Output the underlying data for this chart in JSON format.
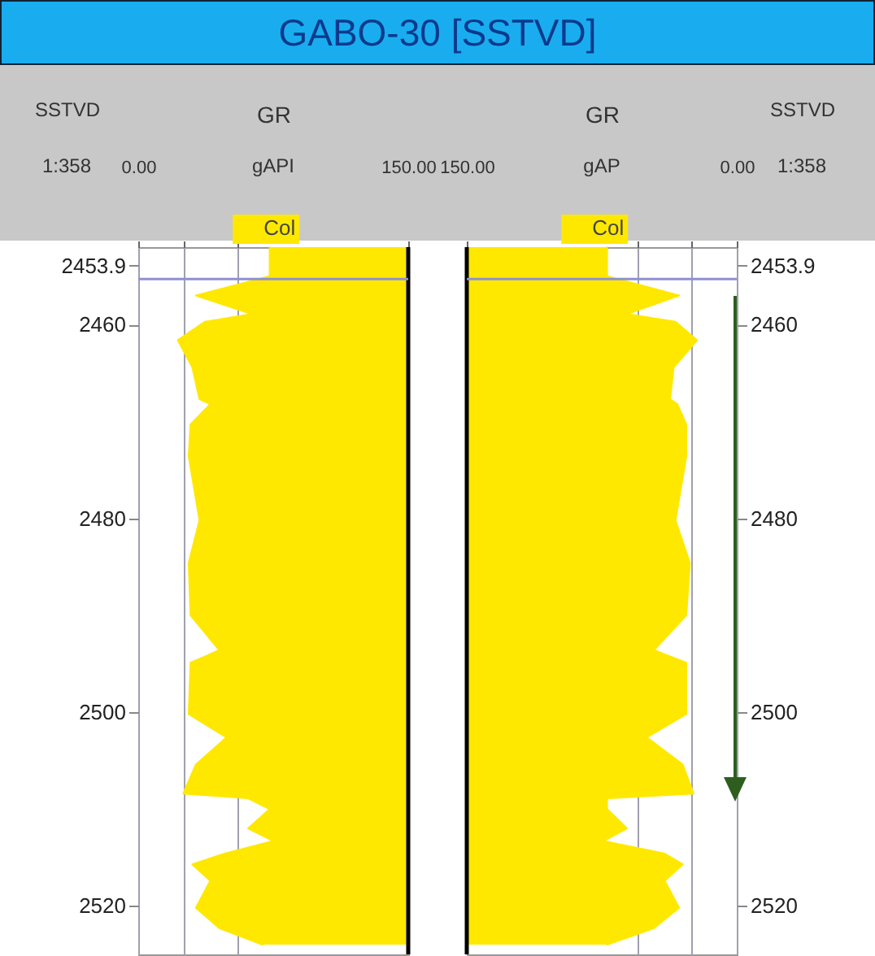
{
  "chart_data": [
    {
      "type": "line",
      "orientation": "horizontal",
      "title": "GABO-30 [SSTVD]",
      "xlabel": "GR",
      "ylabel": "SSTVD",
      "annotations": [
        "1:358",
        "gAPI"
      ],
      "x": [
        2452,
        2455,
        2457,
        2458.9,
        2459.7,
        2461.6,
        2464.4,
        2467.7,
        2468.2,
        2470.3,
        2473.6,
        2480.2,
        2484.6,
        2490,
        2493.6,
        2494.9,
        2500.2,
        2502.6,
        2505.4,
        2508.4,
        2508.9,
        2510,
        2512,
        2513.3,
        2514.6,
        2515.7,
        2517.4,
        2520.2,
        2522.3,
        2524
      ],
      "series": [
        {
          "name": "Col",
          "color": "#ffe800",
          "values": [
            73,
            73,
            32,
            63,
            37,
            22,
            30,
            34,
            40,
            29,
            28,
            34,
            28,
            29,
            45,
            29,
            28,
            49,
            32,
            25,
            61,
            73,
            61,
            75,
            48,
            30,
            40,
            32,
            45,
            69
          ],
          "lower": [
            73,
            73,
            32,
            63,
            37,
            22,
            30,
            34,
            40,
            29,
            28,
            34,
            28,
            29,
            45,
            29,
            28,
            49,
            32,
            25,
            61,
            73,
            61,
            75,
            48,
            30,
            40,
            32,
            45,
            69
          ],
          "upper": [
            150,
            150,
            150,
            150,
            150,
            150,
            150,
            150,
            150,
            150,
            150,
            150,
            150,
            150,
            150,
            150,
            150,
            150,
            150,
            150,
            150,
            150,
            150,
            150,
            150,
            150,
            150,
            150,
            150,
            150
          ]
        }
      ],
      "xlim": [
        0,
        150
      ],
      "xticks": [
        {
          "value": 0,
          "label": "0.00"
        },
        {
          "value": 25,
          "label": null
        },
        {
          "value": 55,
          "label": null
        },
        {
          "value": 150,
          "label": "150.00"
        }
      ],
      "ylim": [
        2525,
        2452
      ],
      "yticks": [
        2453.9,
        2460,
        2480,
        2500,
        2520
      ],
      "grid": "x",
      "legend": "top",
      "ref_lines": [
        {
          "axis": "x",
          "value": 150,
          "color": "#000000"
        },
        {
          "axis": "y",
          "value": 2455.3,
          "color": "#9090d0"
        }
      ]
    },
    {
      "type": "line",
      "orientation": "horizontal",
      "xlabel": "GR",
      "ylabel": "SSTVD",
      "annotations": [
        "1:358",
        "gAP"
      ],
      "x": [
        2452,
        2455,
        2457,
        2458.9,
        2459.7,
        2461.6,
        2464.4,
        2467.7,
        2468.2,
        2470.3,
        2473.6,
        2480.2,
        2484.6,
        2490,
        2493.6,
        2494.9,
        2500.2,
        2502.6,
        2505.4,
        2508.4,
        2508.9,
        2510,
        2512,
        2513.3,
        2514.6,
        2515.7,
        2517.4,
        2520.2,
        2522.3,
        2524
      ],
      "series": [
        {
          "name": "Col",
          "color": "#ffe800",
          "values": [
            72,
            72,
            32,
            61,
            34,
            22,
            35,
            37,
            33,
            28,
            28,
            34,
            26,
            28,
            46,
            28,
            28,
            50,
            30,
            24,
            72,
            72,
            61,
            74,
            40,
            30,
            40,
            32,
            46,
            72
          ],
          "lower": [
            72,
            72,
            32,
            61,
            34,
            22,
            35,
            37,
            33,
            28,
            28,
            34,
            26,
            28,
            46,
            28,
            28,
            50,
            30,
            24,
            72,
            72,
            61,
            74,
            40,
            30,
            40,
            32,
            46,
            72
          ],
          "upper": [
            150,
            150,
            150,
            150,
            150,
            150,
            150,
            150,
            150,
            150,
            150,
            150,
            150,
            150,
            150,
            150,
            150,
            150,
            150,
            150,
            150,
            150,
            150,
            150,
            150,
            150,
            150,
            150,
            150,
            150
          ]
        }
      ],
      "xlim": [
        150,
        0
      ],
      "xticks": [
        {
          "value": 150,
          "label": "150.00"
        },
        {
          "value": 55,
          "label": null
        },
        {
          "value": 25,
          "label": null
        },
        {
          "value": 0,
          "label": "0.00"
        }
      ],
      "ylim": [
        2525,
        2452
      ],
      "yticks": [
        2453.9,
        2460,
        2480,
        2500,
        2520
      ],
      "grid": "x",
      "legend": "top",
      "ref_lines": [
        {
          "axis": "x",
          "value": 150,
          "color": "#000000"
        },
        {
          "axis": "y",
          "value": 2455.3,
          "color": "#9090d0"
        }
      ]
    }
  ]
}
